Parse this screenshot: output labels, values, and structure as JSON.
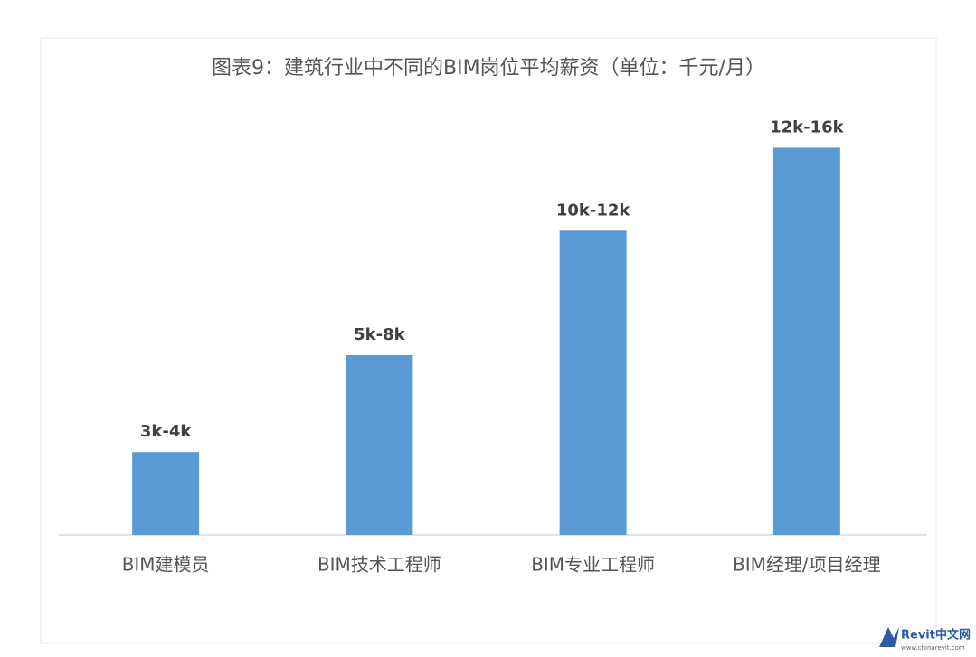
{
  "chart_data": {
    "type": "bar",
    "title": "图表9：建筑行业中不同的BIM岗位平均薪资（单位：千元/月）",
    "categories": [
      "BIM建模员",
      "BIM技术工程师",
      "BIM专业工程师",
      "BIM经理/项目经理"
    ],
    "values": [
      3,
      6.5,
      11,
      14
    ],
    "value_labels": [
      "3k-4k",
      "5k-8k",
      "10k-12k",
      "12k-16k"
    ],
    "color": "#5b9bd5",
    "ylim": [
      0,
      14.7
    ]
  },
  "watermark": {
    "title": "Revit中文网",
    "url": "www.chinarevit.com"
  }
}
